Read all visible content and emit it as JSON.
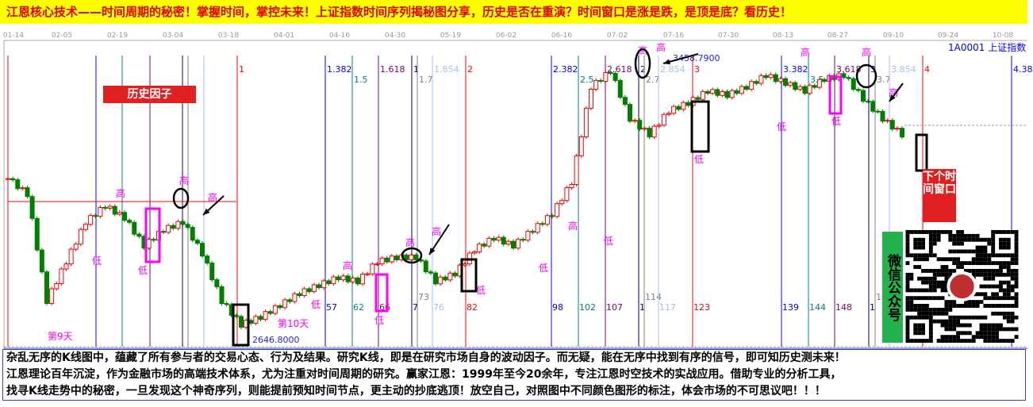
{
  "title": "江恩核心技术——时间周期的秘密！掌握时间，掌控未来！上证指数时间序列揭秘图分享，历史是否在重演？时间窗口是涨是跌，是顶是底？看历史！",
  "symbol_label": "1A0001 上证指数",
  "factor_label": "历史因子",
  "next_window_label": "下个时间窗口",
  "wechat_label": "微信公众号",
  "description": [
    "杂乱无序的K线图中，蕴藏了所有参与者的交易心态、行为及结果。研究K线，即是在研究市场自身的波动因子。而无疑，能在无序中找到有序的信号，即可知历史测未来！",
    "江恩理论百年沉淀，作为金融市场的高端技术体系，尤为注重对时间周期的研究。赢家江恩：1999年至今20余年，专注江恩时空技术的实战应用。借助专业的分析工具，",
    "找寻K线走势中的秘密，一旦发现这个神奇序列，则能提前预知时间节点，更主动的抄底逃顶！放空自己，对照图中不同颜色图形的标注，体会市场的不可思议吧！！！"
  ],
  "colors": {
    "up": "#ff0000",
    "down": "#008000",
    "annotation": "#ff00ff",
    "title_bg": "#ffff00"
  },
  "chart_data": {
    "type": "candlestick",
    "x_tick_labels": [
      "01-14",
      "02-05",
      "02-19",
      "03-04",
      "03-18",
      "04-01",
      "04-16",
      "04-30",
      "05-19",
      "06-02",
      "06-16",
      "07-02",
      "07-16",
      "07-30",
      "08-13",
      "08-27",
      "09-10",
      "09-24",
      "10-08"
    ],
    "closes": [
      3124,
      3078,
      2767,
      2882,
      2997,
      3044,
      3009,
      2928,
      2974,
      2997,
      2905,
      2767,
      2698,
      2721,
      2755,
      2790,
      2813,
      2836,
      2824,
      2882,
      2894,
      2894,
      2824,
      2847,
      2917,
      2951,
      2928,
      2974,
      3020,
      3113,
      3390,
      3436,
      3297,
      3251,
      3320,
      3343,
      3378,
      3366,
      3390,
      3424,
      3401,
      3378,
      3413,
      3424,
      3355,
      3297,
      3251
    ],
    "high_label": "3458.7900",
    "low_label": "2646.8000",
    "cycle_lines": [
      {
        "ratio": "",
        "count": "",
        "color": "#ff0000"
      },
      {
        "ratio": "",
        "count": "",
        "color": "#0000ff"
      },
      {
        "ratio": "",
        "count": "",
        "color": "#008080"
      },
      {
        "ratio": "",
        "count": "",
        "color": "#800080"
      },
      {
        "ratio": "",
        "count": "",
        "color": "#000080"
      },
      {
        "ratio": "",
        "count": "",
        "color": "#808080"
      },
      {
        "ratio": "",
        "count": "",
        "color": "#a0c0f0"
      },
      {
        "ratio": "1",
        "count": "",
        "color": "#ff0000"
      },
      {
        "ratio": "1.382",
        "count": "57",
        "color": "#0000ff"
      },
      {
        "ratio": "1.5",
        "count": "62",
        "color": "#008080"
      },
      {
        "ratio": "1.618",
        "count": "66",
        "color": "#800080"
      },
      {
        "ratio": "1",
        "count": "7",
        "color": "#000080"
      },
      {
        "ratio": "1.7",
        "count": "73",
        "color": "#808080"
      },
      {
        "ratio": "1.854",
        "count": "76",
        "color": "#a0c0f0"
      },
      {
        "ratio": "2",
        "count": "82",
        "color": "#ff0000"
      },
      {
        "ratio": "2.382",
        "count": "98",
        "color": "#0000ff"
      },
      {
        "ratio": "2.5",
        "count": "102",
        "color": "#008080"
      },
      {
        "ratio": "2.618",
        "count": "107",
        "color": "#800080"
      },
      {
        "ratio": "2",
        "count": "1",
        "color": "#000080"
      },
      {
        "ratio": "2.7",
        "count": "114",
        "color": "#808080"
      },
      {
        "ratio": "2.854",
        "count": "117",
        "color": "#a0c0f0"
      },
      {
        "ratio": "3",
        "count": "123",
        "color": "#ff0000"
      },
      {
        "ratio": "3.382",
        "count": "139",
        "color": "#0000ff"
      },
      {
        "ratio": "3.5",
        "count": "144",
        "color": "#008080"
      },
      {
        "ratio": "3.618",
        "count": "148",
        "color": "#800080"
      },
      {
        "ratio": "3",
        "count": "1",
        "color": "#000080"
      },
      {
        "ratio": "3.7",
        "count": "155",
        "color": "#808080"
      },
      {
        "ratio": "3.854",
        "count": "",
        "color": "#a0c0f0"
      },
      {
        "ratio": "4",
        "count": "",
        "color": "#ff0000"
      },
      {
        "ratio": "4.38",
        "count": "",
        "color": "#0000ff"
      }
    ],
    "annotations": [
      "高",
      "低",
      "低",
      "高",
      "高",
      "第9天",
      "第10天",
      "低",
      "高",
      "低",
      "高",
      "高",
      "低",
      "低",
      "高",
      "低",
      "高",
      "高",
      "低",
      "高",
      "低",
      "低",
      "高",
      "高"
    ]
  }
}
